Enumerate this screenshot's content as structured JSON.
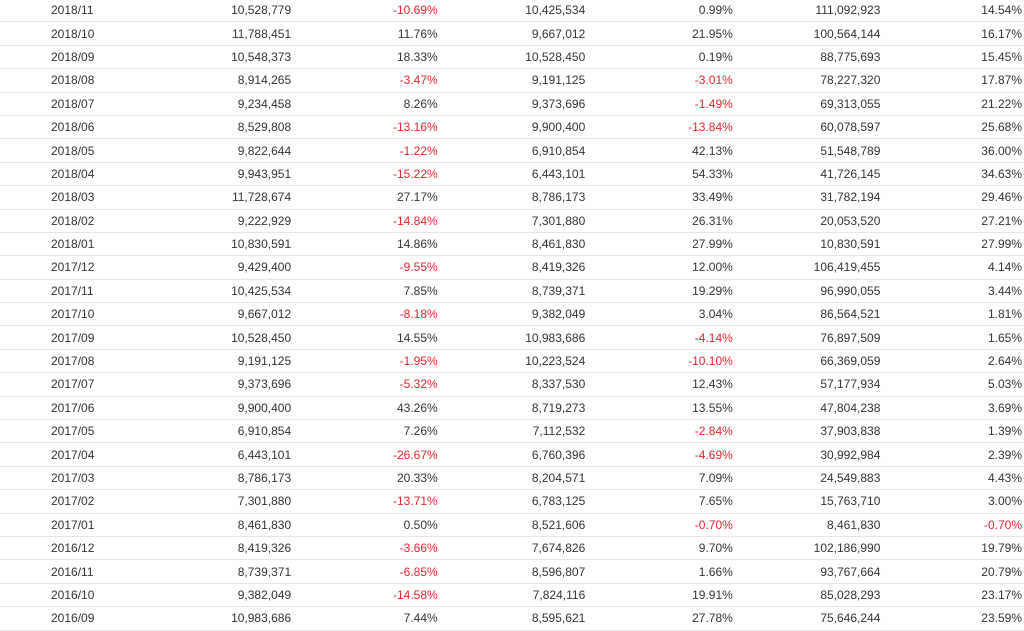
{
  "colors": {
    "negative": "#e8252d",
    "text": "#333333",
    "row_border": "#e6e6e6"
  },
  "rows": [
    {
      "month": "2018/11",
      "value": "10,528,779",
      "change": "-10.69%",
      "prev_value": "10,425,534",
      "yoy": "0.99%",
      "cumulative": "111,092,923",
      "cum_yoy": "14.54%"
    },
    {
      "month": "2018/10",
      "value": "11,788,451",
      "change": "11.76%",
      "prev_value": "9,667,012",
      "yoy": "21.95%",
      "cumulative": "100,564,144",
      "cum_yoy": "16.17%"
    },
    {
      "month": "2018/09",
      "value": "10,548,373",
      "change": "18.33%",
      "prev_value": "10,528,450",
      "yoy": "0.19%",
      "cumulative": "88,775,693",
      "cum_yoy": "15.45%"
    },
    {
      "month": "2018/08",
      "value": "8,914,265",
      "change": "-3.47%",
      "prev_value": "9,191,125",
      "yoy": "-3.01%",
      "cumulative": "78,227,320",
      "cum_yoy": "17.87%"
    },
    {
      "month": "2018/07",
      "value": "9,234,458",
      "change": "8.26%",
      "prev_value": "9,373,696",
      "yoy": "-1.49%",
      "cumulative": "69,313,055",
      "cum_yoy": "21.22%"
    },
    {
      "month": "2018/06",
      "value": "8,529,808",
      "change": "-13.16%",
      "prev_value": "9,900,400",
      "yoy": "-13.84%",
      "cumulative": "60,078,597",
      "cum_yoy": "25.68%"
    },
    {
      "month": "2018/05",
      "value": "9,822,644",
      "change": "-1.22%",
      "prev_value": "6,910,854",
      "yoy": "42.13%",
      "cumulative": "51,548,789",
      "cum_yoy": "36.00%"
    },
    {
      "month": "2018/04",
      "value": "9,943,951",
      "change": "-15.22%",
      "prev_value": "6,443,101",
      "yoy": "54.33%",
      "cumulative": "41,726,145",
      "cum_yoy": "34.63%"
    },
    {
      "month": "2018/03",
      "value": "11,728,674",
      "change": "27.17%",
      "prev_value": "8,786,173",
      "yoy": "33.49%",
      "cumulative": "31,782,194",
      "cum_yoy": "29.46%"
    },
    {
      "month": "2018/02",
      "value": "9,222,929",
      "change": "-14.84%",
      "prev_value": "7,301,880",
      "yoy": "26.31%",
      "cumulative": "20,053,520",
      "cum_yoy": "27.21%"
    },
    {
      "month": "2018/01",
      "value": "10,830,591",
      "change": "14.86%",
      "prev_value": "8,461,830",
      "yoy": "27.99%",
      "cumulative": "10,830,591",
      "cum_yoy": "27.99%"
    },
    {
      "month": "2017/12",
      "value": "9,429,400",
      "change": "-9.55%",
      "prev_value": "8,419,326",
      "yoy": "12.00%",
      "cumulative": "106,419,455",
      "cum_yoy": "4.14%"
    },
    {
      "month": "2017/11",
      "value": "10,425,534",
      "change": "7.85%",
      "prev_value": "8,739,371",
      "yoy": "19.29%",
      "cumulative": "96,990,055",
      "cum_yoy": "3.44%"
    },
    {
      "month": "2017/10",
      "value": "9,667,012",
      "change": "-8.18%",
      "prev_value": "9,382,049",
      "yoy": "3.04%",
      "cumulative": "86,564,521",
      "cum_yoy": "1.81%"
    },
    {
      "month": "2017/09",
      "value": "10,528,450",
      "change": "14.55%",
      "prev_value": "10,983,686",
      "yoy": "-4.14%",
      "cumulative": "76,897,509",
      "cum_yoy": "1.65%"
    },
    {
      "month": "2017/08",
      "value": "9,191,125",
      "change": "-1.95%",
      "prev_value": "10,223,524",
      "yoy": "-10.10%",
      "cumulative": "66,369,059",
      "cum_yoy": "2.64%"
    },
    {
      "month": "2017/07",
      "value": "9,373,696",
      "change": "-5.32%",
      "prev_value": "8,337,530",
      "yoy": "12.43%",
      "cumulative": "57,177,934",
      "cum_yoy": "5.03%"
    },
    {
      "month": "2017/06",
      "value": "9,900,400",
      "change": "43.26%",
      "prev_value": "8,719,273",
      "yoy": "13.55%",
      "cumulative": "47,804,238",
      "cum_yoy": "3.69%"
    },
    {
      "month": "2017/05",
      "value": "6,910,854",
      "change": "7.26%",
      "prev_value": "7,112,532",
      "yoy": "-2.84%",
      "cumulative": "37,903,838",
      "cum_yoy": "1.39%"
    },
    {
      "month": "2017/04",
      "value": "6,443,101",
      "change": "-26.67%",
      "prev_value": "6,760,396",
      "yoy": "-4.69%",
      "cumulative": "30,992,984",
      "cum_yoy": "2.39%"
    },
    {
      "month": "2017/03",
      "value": "8,786,173",
      "change": "20.33%",
      "prev_value": "8,204,571",
      "yoy": "7.09%",
      "cumulative": "24,549,883",
      "cum_yoy": "4.43%"
    },
    {
      "month": "2017/02",
      "value": "7,301,880",
      "change": "-13.71%",
      "prev_value": "6,783,125",
      "yoy": "7.65%",
      "cumulative": "15,763,710",
      "cum_yoy": "3.00%"
    },
    {
      "month": "2017/01",
      "value": "8,461,830",
      "change": "0.50%",
      "prev_value": "8,521,606",
      "yoy": "-0.70%",
      "cumulative": "8,461,830",
      "cum_yoy": "-0.70%"
    },
    {
      "month": "2016/12",
      "value": "8,419,326",
      "change": "-3.66%",
      "prev_value": "7,674,826",
      "yoy": "9.70%",
      "cumulative": "102,186,990",
      "cum_yoy": "19.79%"
    },
    {
      "month": "2016/11",
      "value": "8,739,371",
      "change": "-6.85%",
      "prev_value": "8,596,807",
      "yoy": "1.66%",
      "cumulative": "93,767,664",
      "cum_yoy": "20.79%"
    },
    {
      "month": "2016/10",
      "value": "9,382,049",
      "change": "-14.58%",
      "prev_value": "7,824,116",
      "yoy": "19.91%",
      "cumulative": "85,028,293",
      "cum_yoy": "23.17%"
    },
    {
      "month": "2016/09",
      "value": "10,983,686",
      "change": "7.44%",
      "prev_value": "8,595,621",
      "yoy": "27.78%",
      "cumulative": "75,646,244",
      "cum_yoy": "23.59%"
    }
  ]
}
